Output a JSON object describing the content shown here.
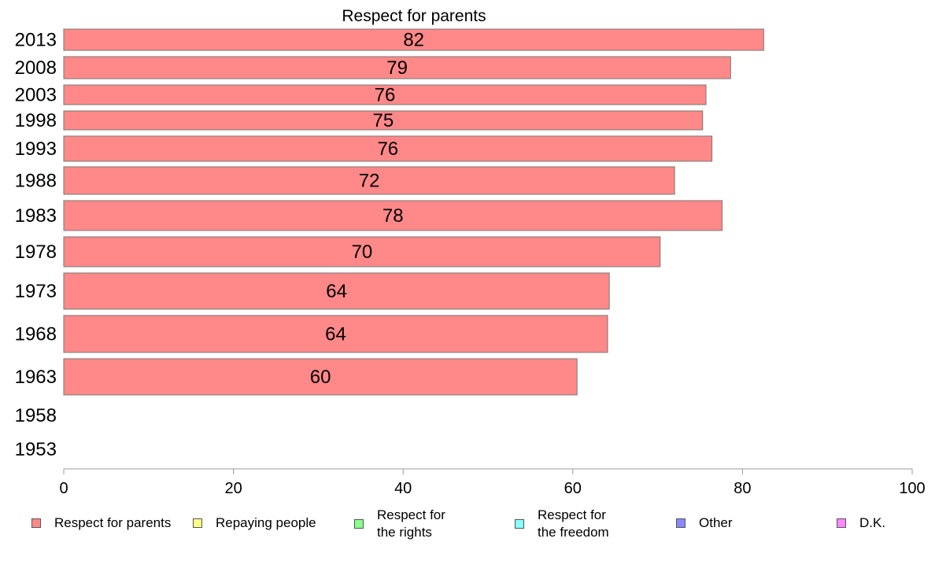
{
  "chart_data": {
    "type": "bar",
    "orientation": "horizontal",
    "title": "Respect for parents",
    "categories": [
      "2013",
      "2008",
      "2003",
      "1998",
      "1993",
      "1988",
      "1983",
      "1978",
      "1973",
      "1968",
      "1963",
      "1958",
      "1953"
    ],
    "series": [
      {
        "name": "Respect for parents",
        "color": "#ff8888",
        "values": [
          82.5,
          78.6,
          75.7,
          75.3,
          76.4,
          72.0,
          77.6,
          70.3,
          64.3,
          64.1,
          60.5,
          null,
          null
        ],
        "labels": [
          "82",
          "79",
          "76",
          "75",
          "76",
          "72",
          "78",
          "70",
          "64",
          "64",
          "60",
          "",
          ""
        ]
      }
    ],
    "xlim": [
      0,
      100
    ],
    "xticks": [
      0,
      20,
      40,
      60,
      80,
      100
    ],
    "xlabel": "",
    "ylabel": "",
    "grid": false,
    "legend_position": "bottom",
    "legend": [
      {
        "label": "Respect for parents",
        "color": "#ff8888"
      },
      {
        "label": "Repaying people",
        "color": "#ffff88"
      },
      {
        "label": "Respect for\nthe rights",
        "color": "#88ff88"
      },
      {
        "label": "Respect for\nthe freedom",
        "color": "#88ffff"
      },
      {
        "label": "Other",
        "color": "#8888ff"
      },
      {
        "label": "D.K.",
        "color": "#ff88ff"
      }
    ]
  }
}
